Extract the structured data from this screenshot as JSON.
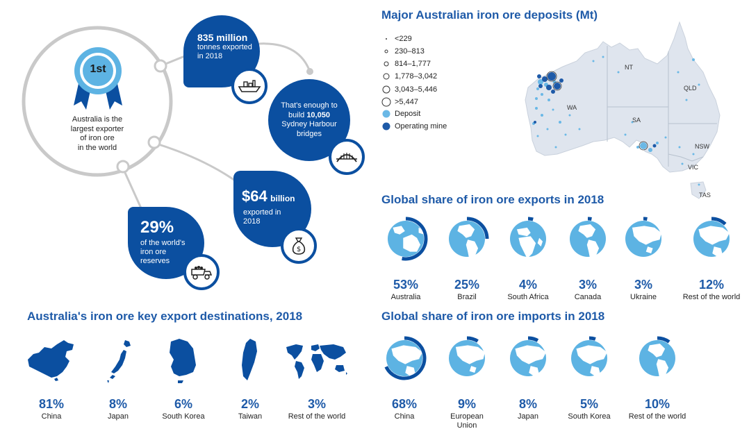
{
  "infographic": {
    "rank": {
      "badge": "1st",
      "caption": [
        "Australia is the",
        "largest exporter",
        "of iron ore",
        "in the world"
      ]
    },
    "exports_volume": {
      "value": "835 million",
      "line1": "tonnes exported",
      "line2": "in 2018",
      "icon": "ship-icon"
    },
    "bridges": {
      "line1": "That's enough to",
      "line2_prefix": "build ",
      "line2_value": "10,050",
      "line3": "Sydney Harbour",
      "line4": "bridges",
      "icon": "bridge-icon"
    },
    "value": {
      "amount": "$64",
      "unit": "billion",
      "line1": "exported in",
      "line2": "2018",
      "icon": "money-bag-icon"
    },
    "reserves": {
      "value": "29%",
      "line1": "of the world's",
      "line2": "iron ore",
      "line3": "reserves",
      "icon": "mine-truck-icon"
    }
  },
  "deposits_map": {
    "title": "Major Australian iron ore deposits (Mt)",
    "legend": [
      "<229",
      "230–813",
      "814–1,777",
      "1,778–3,042",
      "3,043–5,446",
      ">5,447",
      "Deposit",
      "Operating mine"
    ],
    "regions": [
      "NT",
      "QLD",
      "WA",
      "SA",
      "NSW",
      "VIC",
      "TAS"
    ],
    "colors": {
      "deposit": "#6ab8e6",
      "operating": "#1e5aa8",
      "land": "#dfe5ee"
    }
  },
  "export_share": {
    "title": "Global share of iron ore exports in 2018",
    "items": [
      {
        "value": "53%",
        "label": "Australia",
        "fraction": 0.53,
        "region": "australia"
      },
      {
        "value": "25%",
        "label": "Brazil",
        "fraction": 0.25,
        "region": "americas"
      },
      {
        "value": "4%",
        "label": "South Africa",
        "fraction": 0.04,
        "region": "africa"
      },
      {
        "value": "3%",
        "label": "Canada",
        "fraction": 0.03,
        "region": "americas"
      },
      {
        "value": "3%",
        "label": "Ukraine",
        "fraction": 0.03,
        "region": "europe"
      },
      {
        "value": "12%",
        "label": "Rest of the world",
        "fraction": 0.12,
        "region": "asia"
      }
    ]
  },
  "destinations": {
    "title": "Australia's iron ore key export destinations, 2018",
    "items": [
      {
        "value": "81%",
        "label": "China",
        "icon": "china-map-icon"
      },
      {
        "value": "8%",
        "label": "Japan",
        "icon": "japan-map-icon"
      },
      {
        "value": "6%",
        "label": "South Korea",
        "icon": "south-korea-map-icon"
      },
      {
        "value": "2%",
        "label": "Taiwan",
        "icon": "taiwan-map-icon"
      },
      {
        "value": "3%",
        "label": "Rest of the world",
        "icon": "world-map-icon"
      }
    ]
  },
  "import_share": {
    "title": "Global share of iron ore imports in 2018",
    "items": [
      {
        "value": "68%",
        "label": "China",
        "fraction": 0.68,
        "region": "asia"
      },
      {
        "value": "9%",
        "label": "European Union",
        "fraction": 0.09,
        "region": "europe"
      },
      {
        "value": "8%",
        "label": "Japan",
        "fraction": 0.08,
        "region": "asia"
      },
      {
        "value": "5%",
        "label": "South Korea",
        "fraction": 0.05,
        "region": "asia"
      },
      {
        "value": "10%",
        "label": "Rest of the world",
        "fraction": 0.1,
        "region": "americas"
      }
    ]
  }
}
